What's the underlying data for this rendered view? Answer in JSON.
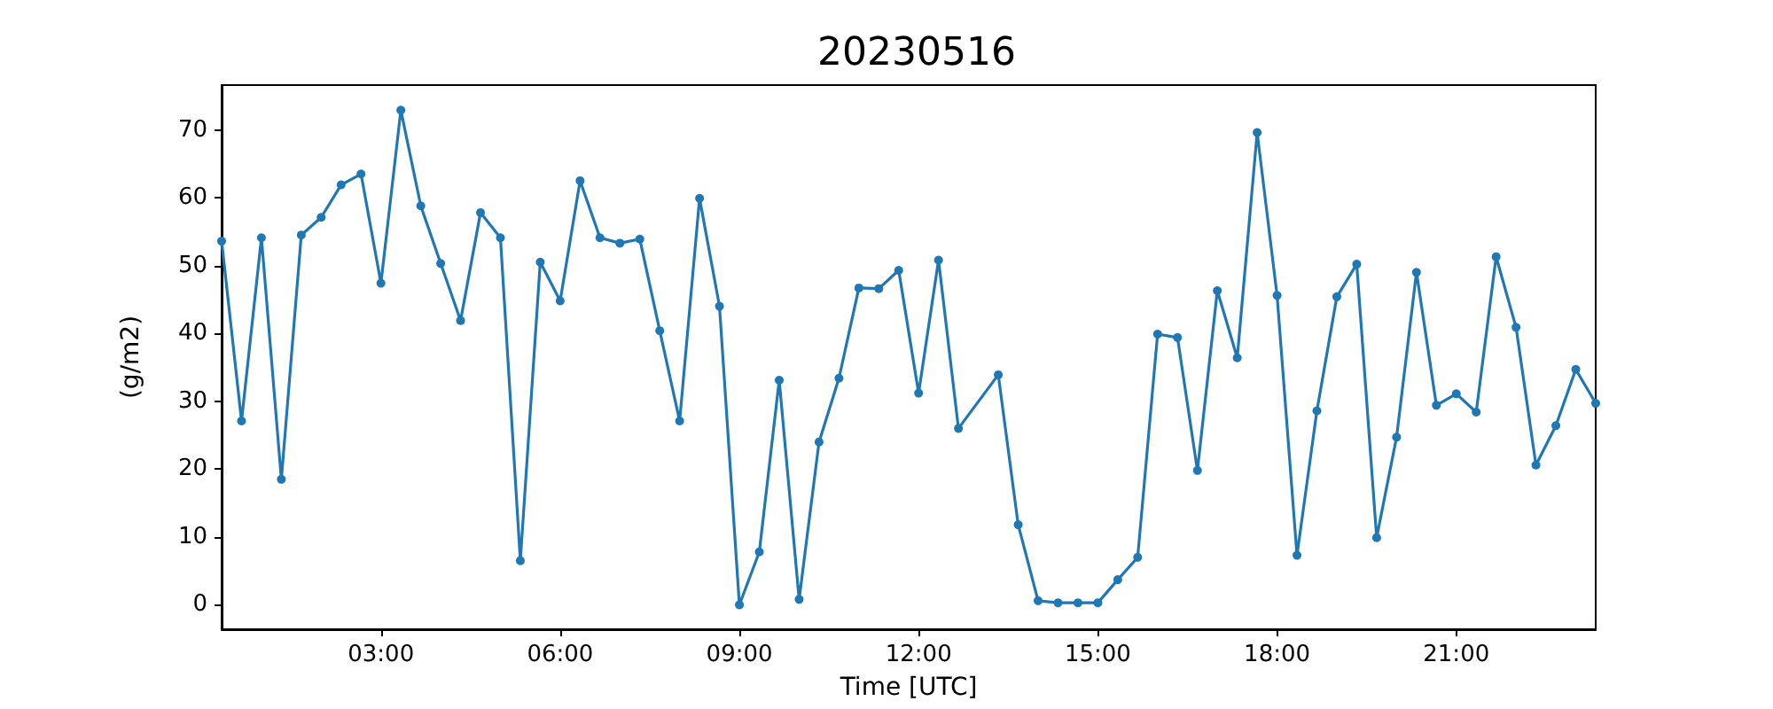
{
  "chart_data": {
    "type": "line",
    "title": "20230516",
    "xlabel": "Time [UTC]",
    "ylabel": "(g/m2)",
    "x": [
      0.3333,
      0.6667,
      1,
      1.3333,
      1.6667,
      2,
      2.3333,
      2.6667,
      3,
      3.3333,
      3.6667,
      4,
      4.3333,
      4.6667,
      5,
      5.3333,
      5.6667,
      6,
      6.3333,
      6.6667,
      7,
      7.3333,
      7.6667,
      8,
      8.3333,
      8.6667,
      9,
      9.3333,
      9.6667,
      10,
      10.3333,
      10.6667,
      11,
      11.3333,
      11.6667,
      12,
      12.3333,
      12.6667,
      13.3333,
      13.6667,
      14,
      14.3333,
      14.6667,
      15,
      15.3333,
      15.6667,
      16,
      16.3333,
      16.6667,
      17,
      17.3333,
      17.6667,
      18,
      18.3333,
      18.6667,
      19,
      19.3333,
      19.6667,
      20,
      20.3333,
      20.6667,
      21,
      21.3333,
      21.6667,
      22,
      22.3333,
      22.6667,
      23,
      23.3333
    ],
    "series": [
      {
        "color": "#1f77b4",
        "values": [
          53.6,
          27.1,
          54.1,
          18.5,
          54.5,
          57.1,
          61.9,
          63.5,
          47.4,
          72.9,
          58.8,
          50.3,
          41.9,
          57.8,
          54.1,
          6.5,
          50.5,
          44.8,
          62.5,
          54.1,
          53.3,
          53.9,
          40.4,
          27.1,
          59.9,
          44.0,
          0.0,
          7.8,
          33.1,
          0.8,
          24.0,
          33.4,
          46.7,
          46.6,
          49.3,
          31.2,
          50.8,
          26.0,
          33.9,
          11.8,
          0.6,
          0.3,
          0.3,
          0.3,
          3.7,
          7.0,
          39.9,
          39.4,
          19.8,
          46.3,
          36.4,
          69.6,
          45.6,
          7.3,
          28.6,
          45.4,
          50.2,
          9.9,
          24.7,
          49.0,
          29.4,
          31.1,
          28.4,
          51.3,
          40.9,
          20.6,
          26.4,
          34.7,
          29.7
        ]
      }
    ],
    "xlim": [
      0.3333,
      23.3333
    ],
    "xticks": [
      {
        "value": 3,
        "label": "03:00"
      },
      {
        "value": 6,
        "label": "06:00"
      },
      {
        "value": 9,
        "label": "09:00"
      },
      {
        "value": 12,
        "label": "12:00"
      },
      {
        "value": 15,
        "label": "15:00"
      },
      {
        "value": 18,
        "label": "18:00"
      },
      {
        "value": 21,
        "label": "21:00"
      }
    ],
    "ylim": [
      -3.6,
      76.6
    ],
    "yticks": [
      0,
      10,
      20,
      30,
      40,
      50,
      60,
      70
    ],
    "marker": "circle",
    "line_style": "solid",
    "grid": false
  }
}
